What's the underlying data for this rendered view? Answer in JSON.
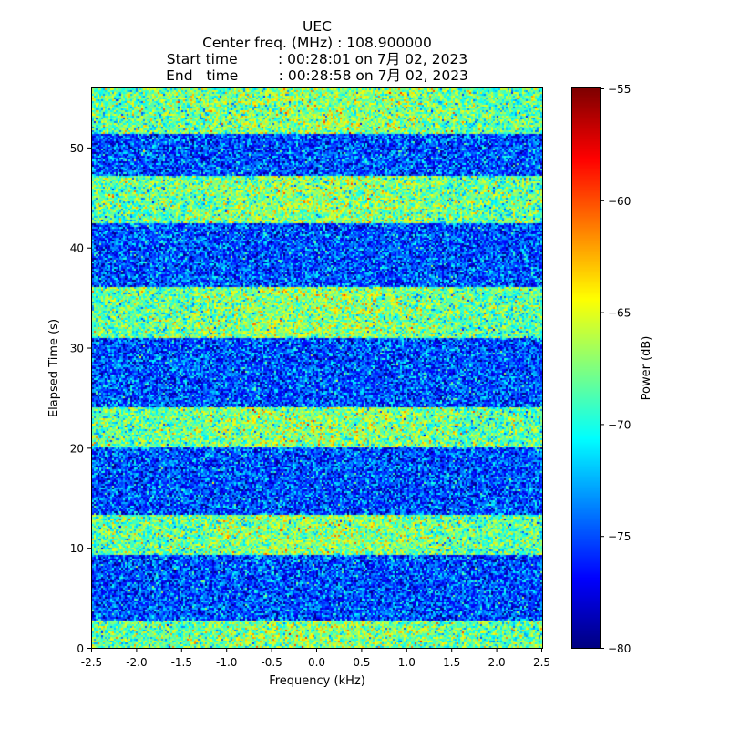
{
  "chart_data": {
    "type": "heatmap",
    "title_lines": [
      "UEC",
      "Center freq. (MHz) : 108.900000",
      "Start time         : 00:28:01 on 7月 02, 2023",
      "End   time         : 00:28:58 on 7月 02, 2023"
    ],
    "xlabel": "Frequency (kHz)",
    "ylabel": "Elapsed Time (s)",
    "xlim": [
      -2.5,
      2.5
    ],
    "ylim": [
      0,
      56
    ],
    "x_ticks": [
      -2.5,
      -2.0,
      -1.5,
      -1.0,
      -0.5,
      0.0,
      0.5,
      1.0,
      1.5,
      2.0,
      2.5
    ],
    "x_tick_labels": [
      "-2.5",
      "-2.0",
      "-1.5",
      "-1.0",
      "-0.5",
      "0.0",
      "0.5",
      "1.0",
      "1.5",
      "2.0",
      "2.5"
    ],
    "y_ticks": [
      0,
      10,
      20,
      30,
      40,
      50
    ],
    "y_tick_labels": [
      "0",
      "10",
      "20",
      "30",
      "40",
      "50"
    ],
    "colormap": "jet",
    "colorbar": {
      "label": "Power (dB)",
      "range": [
        -80,
        -55
      ],
      "ticks": [
        -80,
        -75,
        -70,
        -65,
        -60,
        -55
      ],
      "tick_labels": [
        "−80",
        "−75",
        "−70",
        "−65",
        "−60",
        "−55"
      ]
    },
    "signal_bands_s": [
      [
        0,
        2.8
      ],
      [
        9.3,
        13.3
      ],
      [
        20.2,
        24.2
      ],
      [
        31.1,
        36.2
      ],
      [
        42.6,
        47.3
      ],
      [
        51.5,
        56
      ]
    ],
    "noise_floor_db": -75,
    "signal_level_db": -68.5
  }
}
